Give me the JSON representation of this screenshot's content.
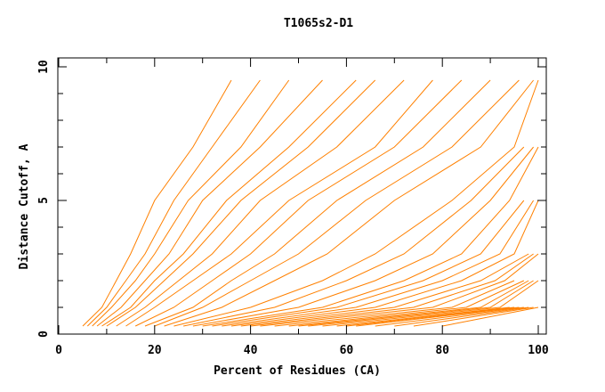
{
  "chart_data": {
    "type": "line",
    "title": "T1065s2-D1",
    "xlabel": "Percent of Residues (CA)",
    "ylabel": "Distance Cutoff, A",
    "xlim": [
      0,
      100
    ],
    "ylim": [
      0,
      10
    ],
    "x_ticks": [
      "0",
      "20",
      "40",
      "60",
      "80",
      "100"
    ],
    "y_ticks": [
      "0",
      "5",
      "10"
    ],
    "grid": false,
    "line_color": "#ff8000",
    "y_levels": [
      0.3,
      1,
      2,
      3,
      5,
      7,
      9.5
    ],
    "series": [
      {
        "x": [
          5,
          9,
          12,
          15,
          20,
          28,
          36
        ]
      },
      {
        "x": [
          6,
          10,
          14,
          18,
          24,
          32,
          42
        ]
      },
      {
        "x": [
          7,
          11,
          16,
          20,
          27,
          38,
          48
        ]
      },
      {
        "x": [
          8,
          13,
          18,
          23,
          30,
          42,
          55
        ]
      },
      {
        "x": [
          9,
          15,
          20,
          26,
          35,
          48,
          62
        ]
      },
      {
        "x": [
          10,
          16,
          22,
          28,
          38,
          52,
          66
        ]
      },
      {
        "x": [
          12,
          18,
          25,
          32,
          42,
          58,
          72
        ]
      },
      {
        "x": [
          14,
          20,
          28,
          36,
          48,
          66,
          78
        ]
      },
      {
        "x": [
          16,
          24,
          32,
          40,
          52,
          70,
          84
        ]
      },
      {
        "x": [
          18,
          28,
          36,
          45,
          58,
          76,
          90
        ]
      },
      {
        "x": [
          20,
          30,
          40,
          50,
          64,
          82,
          96
        ]
      },
      {
        "x": [
          22,
          34,
          45,
          56,
          70,
          88,
          99
        ]
      },
      {
        "x": [
          24,
          40,
          55,
          66,
          82,
          95,
          100
        ]
      },
      {
        "x": [
          26,
          45,
          60,
          72,
          86,
          97
        ]
      },
      {
        "x": [
          28,
          50,
          66,
          78,
          90,
          99
        ]
      },
      {
        "x": [
          30,
          55,
          72,
          84,
          94,
          100
        ]
      },
      {
        "x": [
          32,
          58,
          76,
          88,
          97
        ]
      },
      {
        "x": [
          34,
          62,
          80,
          92,
          99
        ]
      },
      {
        "x": [
          36,
          66,
          84,
          95,
          100
        ]
      },
      {
        "x": [
          38,
          70,
          88,
          98
        ]
      },
      {
        "x": [
          40,
          74,
          91,
          99
        ]
      },
      {
        "x": [
          42,
          78,
          93,
          100
        ]
      },
      {
        "x": [
          45,
          82,
          95
        ]
      },
      {
        "x": [
          48,
          85,
          97
        ]
      },
      {
        "x": [
          50,
          88,
          98
        ]
      },
      {
        "x": [
          52,
          90,
          99
        ]
      },
      {
        "x": [
          55,
          92,
          100
        ]
      },
      {
        "x": [
          58,
          94
        ]
      },
      {
        "x": [
          60,
          95
        ]
      },
      {
        "x": [
          62,
          96
        ]
      },
      {
        "x": [
          66,
          97
        ]
      },
      {
        "x": [
          70,
          98
        ]
      },
      {
        "x": [
          74,
          99
        ]
      },
      {
        "x": [
          80,
          100
        ]
      }
    ]
  }
}
